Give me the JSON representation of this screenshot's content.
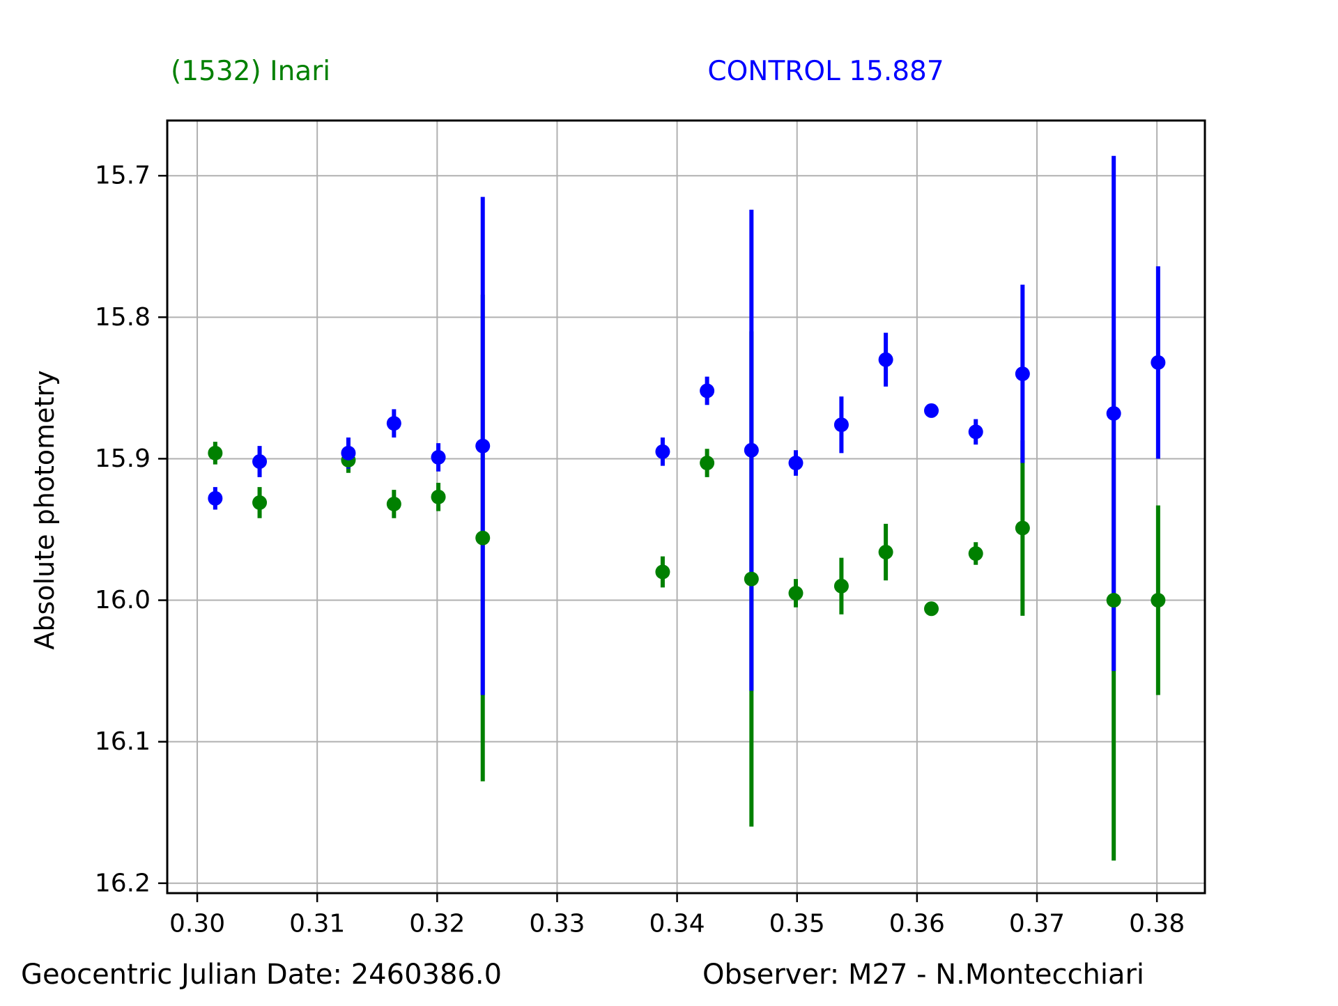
{
  "titles": {
    "left": "(1532) Inari",
    "right": "CONTROL 15.887"
  },
  "footer": {
    "left": "Geocentric Julian Date: 2460386.0",
    "right": "Observer: M27 - N.Montecchiari"
  },
  "colors": {
    "asteroid": "#008000",
    "control": "#0000ff",
    "grid": "#b0b0b0",
    "frame": "#000000",
    "text": "#000000",
    "background": "#ffffff"
  },
  "chart_data": {
    "type": "scatter",
    "title": "(1532) Inari  /  CONTROL 15.887",
    "xlabel": "",
    "ylabel": "Absolute photometry",
    "x_ticks": [
      0.3,
      0.31,
      0.32,
      0.33,
      0.34,
      0.35,
      0.36,
      0.37,
      0.38
    ],
    "x_tick_labels": [
      "0.30",
      "0.31",
      "0.32",
      "0.33",
      "0.34",
      "0.35",
      "0.36",
      "0.37",
      "0.38"
    ],
    "y_ticks": [
      15.7,
      15.8,
      15.9,
      16.0,
      16.1,
      16.2
    ],
    "y_tick_labels": [
      "15.7",
      "15.8",
      "15.9",
      "16.0",
      "16.1",
      "16.2"
    ],
    "xlim": [
      0.2975,
      0.384
    ],
    "ylim": [
      16.207,
      15.661
    ],
    "y_inverted": true,
    "grid": true,
    "legend_position": "none",
    "series": [
      {
        "name": "(1532) Inari",
        "color": "#008000",
        "marker": "circle",
        "error_bars": true,
        "points": [
          {
            "x": 0.3015,
            "y": 15.896,
            "err": 0.008
          },
          {
            "x": 0.3052,
            "y": 15.931,
            "err": 0.011
          },
          {
            "x": 0.3126,
            "y": 15.901,
            "err": 0.009
          },
          {
            "x": 0.3164,
            "y": 15.932,
            "err": 0.01
          },
          {
            "x": 0.3201,
            "y": 15.927,
            "err": 0.01
          },
          {
            "x": 0.3238,
            "y": 15.956,
            "err": 0.172
          },
          {
            "x": 0.3388,
            "y": 15.98,
            "err": 0.011
          },
          {
            "x": 0.3425,
            "y": 15.903,
            "err": 0.01
          },
          {
            "x": 0.3462,
            "y": 15.985,
            "err": 0.175
          },
          {
            "x": 0.3499,
            "y": 15.995,
            "err": 0.01
          },
          {
            "x": 0.3537,
            "y": 15.99,
            "err": 0.02
          },
          {
            "x": 0.3574,
            "y": 15.966,
            "err": 0.02
          },
          {
            "x": 0.3612,
            "y": 16.006,
            "err": 0.002
          },
          {
            "x": 0.3649,
            "y": 15.967,
            "err": 0.008
          },
          {
            "x": 0.3688,
            "y": 15.949,
            "err": 0.062
          },
          {
            "x": 0.3764,
            "y": 16.0,
            "err": 0.184
          },
          {
            "x": 0.3801,
            "y": 16.0,
            "err": 0.067
          }
        ]
      },
      {
        "name": "CONTROL",
        "color": "#0000ff",
        "marker": "circle",
        "error_bars": true,
        "points": [
          {
            "x": 0.3015,
            "y": 15.928,
            "err": 0.008
          },
          {
            "x": 0.3052,
            "y": 15.902,
            "err": 0.011
          },
          {
            "x": 0.3126,
            "y": 15.896,
            "err": 0.011
          },
          {
            "x": 0.3164,
            "y": 15.875,
            "err": 0.01
          },
          {
            "x": 0.3201,
            "y": 15.899,
            "err": 0.01
          },
          {
            "x": 0.3238,
            "y": 15.891,
            "err": 0.176
          },
          {
            "x": 0.3388,
            "y": 15.895,
            "err": 0.01
          },
          {
            "x": 0.3425,
            "y": 15.852,
            "err": 0.01
          },
          {
            "x": 0.3462,
            "y": 15.894,
            "err": 0.17
          },
          {
            "x": 0.3499,
            "y": 15.903,
            "err": 0.009
          },
          {
            "x": 0.3537,
            "y": 15.876,
            "err": 0.02
          },
          {
            "x": 0.3574,
            "y": 15.83,
            "err": 0.019
          },
          {
            "x": 0.3612,
            "y": 15.866,
            "err": 0.002
          },
          {
            "x": 0.3649,
            "y": 15.881,
            "err": 0.009
          },
          {
            "x": 0.3688,
            "y": 15.84,
            "err": 0.063
          },
          {
            "x": 0.3764,
            "y": 15.868,
            "err": 0.182
          },
          {
            "x": 0.3801,
            "y": 15.832,
            "err": 0.068
          }
        ]
      }
    ]
  }
}
